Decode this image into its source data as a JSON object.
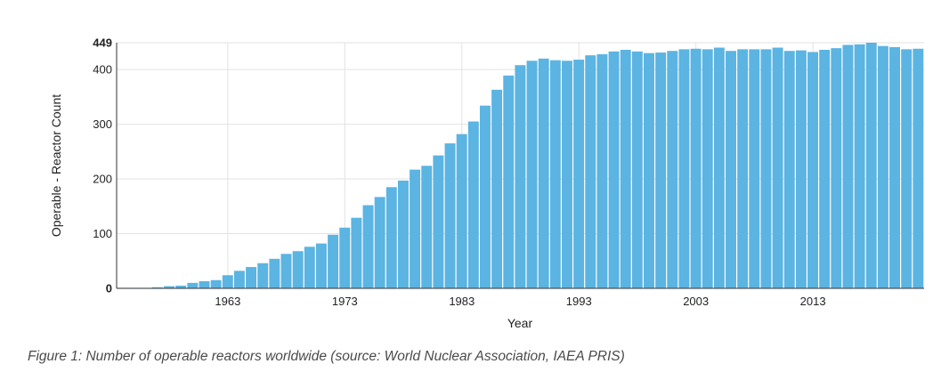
{
  "chart_data": {
    "type": "bar",
    "title": "",
    "xlabel": "Year",
    "ylabel": "Operable - Reactor Count",
    "ylim": [
      0,
      449
    ],
    "y_ticks": [
      0,
      100,
      200,
      300,
      400,
      449
    ],
    "y_tick_labels": [
      "0",
      "100",
      "200",
      "300",
      "400",
      "449"
    ],
    "x_ticks": [
      1963,
      1973,
      1983,
      1993,
      2003,
      2013
    ],
    "x_tick_labels": [
      "1963",
      "1973",
      "1983",
      "1993",
      "2003",
      "2013"
    ],
    "grid": true,
    "bar_color": "#5bb4e1",
    "categories": [
      1954,
      1955,
      1956,
      1957,
      1958,
      1959,
      1960,
      1961,
      1962,
      1963,
      1964,
      1965,
      1966,
      1967,
      1968,
      1969,
      1970,
      1971,
      1972,
      1973,
      1974,
      1975,
      1976,
      1977,
      1978,
      1979,
      1980,
      1981,
      1982,
      1983,
      1984,
      1985,
      1986,
      1987,
      1988,
      1989,
      1990,
      1991,
      1992,
      1993,
      1994,
      1995,
      1996,
      1997,
      1998,
      1999,
      2000,
      2001,
      2002,
      2003,
      2004,
      2005,
      2006,
      2007,
      2008,
      2009,
      2010,
      2011,
      2012,
      2013,
      2014,
      2015,
      2016,
      2017,
      2018,
      2019,
      2020,
      2021,
      2022
    ],
    "values": [
      1,
      1,
      1,
      2,
      4,
      5,
      10,
      13,
      15,
      24,
      32,
      39,
      46,
      54,
      63,
      68,
      76,
      82,
      98,
      111,
      129,
      152,
      167,
      185,
      197,
      217,
      224,
      243,
      265,
      282,
      305,
      334,
      363,
      389,
      408,
      416,
      420,
      417,
      416,
      418,
      426,
      428,
      433,
      436,
      433,
      430,
      431,
      434,
      437,
      438,
      437,
      440,
      434,
      437,
      437,
      437,
      440,
      434,
      435,
      432,
      436,
      439,
      445,
      446,
      449,
      443,
      441,
      437,
      438
    ]
  },
  "caption": "Figure 1: Number of operable reactors worldwide (source: World Nuclear Association, IAEA PRIS)"
}
